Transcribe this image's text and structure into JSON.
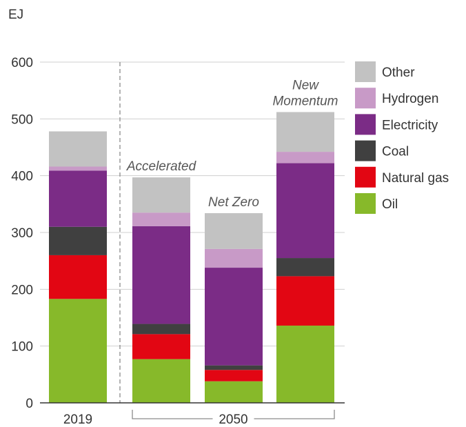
{
  "chart_data": {
    "type": "bar",
    "stacked": true,
    "unit_label": "EJ",
    "ylim": [
      0,
      600
    ],
    "yticks": [
      "0",
      "100",
      "200",
      "300",
      "400",
      "500",
      "600"
    ],
    "categories": [
      "2019",
      "Accelerated",
      "Net Zero",
      "New Momentum"
    ],
    "x_group_labels": [
      {
        "label": "2019"
      },
      {
        "label": "2050"
      }
    ],
    "scenario_labels": [
      {
        "category": "Accelerated",
        "lines": [
          "Accelerated"
        ]
      },
      {
        "category": "Net Zero",
        "lines": [
          "Net Zero"
        ]
      },
      {
        "category": "New Momentum",
        "lines": [
          "New",
          "Momentum"
        ]
      }
    ],
    "series": [
      {
        "name": "Oil",
        "color": "#87b92a",
        "values": [
          183,
          77,
          38,
          136
        ]
      },
      {
        "name": "Natural gas",
        "color": "#e20613",
        "values": [
          77,
          44,
          20,
          87
        ]
      },
      {
        "name": "Coal",
        "color": "#404040",
        "values": [
          50,
          18,
          8,
          32
        ]
      },
      {
        "name": "Electricity",
        "color": "#7b2c86",
        "values": [
          99,
          172,
          172,
          167
        ]
      },
      {
        "name": "Hydrogen",
        "color": "#c89ac7",
        "values": [
          7,
          24,
          33,
          20
        ]
      },
      {
        "name": "Other",
        "color": "#c2c2c2",
        "values": [
          62,
          62,
          63,
          70
        ]
      }
    ],
    "legend_order": [
      "Other",
      "Hydrogen",
      "Electricity",
      "Coal",
      "Natural gas",
      "Oil"
    ],
    "legend_position": "right",
    "grid": true
  }
}
